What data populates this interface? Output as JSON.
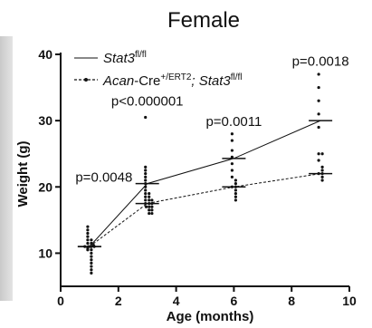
{
  "chart_data": {
    "type": "scatter",
    "title": "Female",
    "xlabel": "Age (months)",
    "ylabel": "Weight (g)",
    "xlim": [
      0,
      10
    ],
    "ylim": [
      5,
      40
    ],
    "xticks": [
      0,
      2,
      4,
      6,
      8,
      10
    ],
    "yticks": [
      10,
      20,
      30,
      40
    ],
    "legend_position": "top-left",
    "series": [
      {
        "name": "Stat3 fl/fl",
        "name_main": "Stat3",
        "name_sup": "fl/fl",
        "line_style": "solid",
        "mean_x": [
          1,
          3,
          6,
          9
        ],
        "mean_y": [
          11,
          20.5,
          24.3,
          30
        ],
        "points": [
          {
            "x": 1,
            "y": [
              10.5,
              10.8,
              11,
              11,
              11.2,
              11.5,
              12,
              12.5,
              13,
              13.5,
              14
            ]
          },
          {
            "x": 3,
            "y": [
              17.5,
              18,
              18.5,
              19,
              19.5,
              20,
              20.5,
              21,
              21.5,
              22,
              22.5,
              23,
              30.5
            ]
          },
          {
            "x": 6,
            "y": [
              20,
              21.5,
              22.5,
              23.5,
              24.5,
              25.5,
              27,
              28
            ]
          },
          {
            "x": 9,
            "y": [
              22,
              24,
              25,
              29,
              31,
              33,
              35,
              37
            ]
          }
        ]
      },
      {
        "name": "Acan-Cre +/ERT2; Stat3 fl/fl",
        "name_main1": "Acan",
        "name_main2": "-Cre",
        "name_sup1": "+/ERT2",
        "name_main3": "; Stat3",
        "name_sup2": "fl/fl",
        "line_style": "dashed",
        "mean_x": [
          1,
          3,
          6,
          9
        ],
        "mean_y": [
          11,
          17.5,
          20,
          22
        ],
        "points": [
          {
            "x": 1,
            "y": [
              7,
              7.5,
              8,
              8.5,
              9,
              9.5,
              10,
              10.5,
              11,
              11,
              11,
              11.5,
              12
            ]
          },
          {
            "x": 3,
            "y": [
              16,
              16,
              16.5,
              16.5,
              17,
              17,
              17,
              17.5,
              17.5,
              18,
              18,
              18.5,
              19
            ]
          },
          {
            "x": 6,
            "y": [
              18,
              18.5,
              19,
              19.5,
              20,
              20.5,
              21
            ]
          },
          {
            "x": 9,
            "y": [
              21,
              21.5,
              22,
              22.5,
              23,
              25
            ]
          }
        ]
      }
    ],
    "annotations": [
      {
        "text": "p=0.0048",
        "x": 1.5,
        "y": 20.8
      },
      {
        "text": "p<0.000001",
        "x": 3,
        "y": 32.3
      },
      {
        "text": "p=0.0011",
        "x": 6,
        "y": 29.2
      },
      {
        "text": "p=0.0018",
        "x": 9,
        "y": 38.3
      }
    ]
  }
}
